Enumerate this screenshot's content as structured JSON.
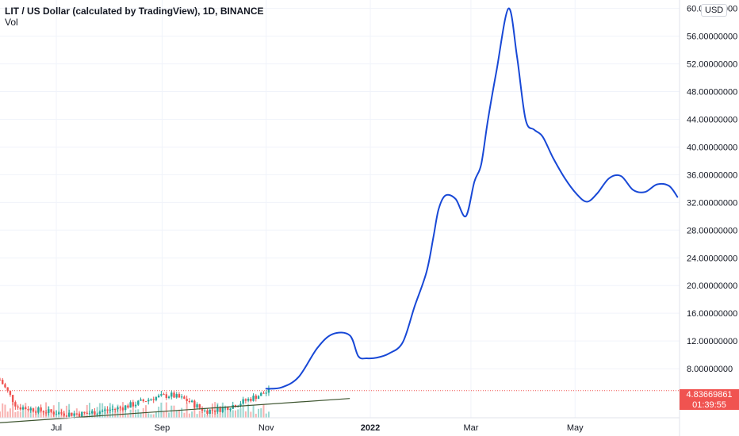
{
  "header": {
    "title": "LIT / US Dollar (calculated by TradingView), 1D, BINANCE",
    "sub": "Vol",
    "currency": "USD"
  },
  "price_badge": {
    "price": "4.83669861",
    "countdown": "01:39:55",
    "color": "#f05350"
  },
  "chart_data": {
    "type": "line",
    "title": "LIT / US Dollar (calculated by TradingView), 1D, BINANCE",
    "ylim": [
      0,
      60
    ],
    "y_ticks": [
      "60.00000000",
      "56.00000000",
      "52.00000000",
      "48.00000000",
      "44.00000000",
      "40.00000000",
      "36.00000000",
      "32.00000000",
      "28.00000000",
      "24.00000000",
      "20.00000000",
      "16.00000000",
      "12.00000000",
      "8.00000000"
    ],
    "y_tick_values": [
      60,
      56,
      52,
      48,
      44,
      40,
      36,
      32,
      28,
      24,
      20,
      16,
      12,
      8
    ],
    "x_ticks": [
      "Jul",
      "Sep",
      "Nov",
      "2022",
      "Mar",
      "May"
    ],
    "x_tick_dates": [
      "2021-07-01",
      "2021-09-01",
      "2021-11-01",
      "2022-01-01",
      "2022-03-01",
      "2022-05-01"
    ],
    "x_range": [
      "2021-05-29",
      "2022-06-30"
    ],
    "current_price": 4.83669861,
    "grid": true,
    "colors": {
      "candle_up": "#26a69a",
      "candle_down": "#ef5350",
      "projection": "#1848d6",
      "trendline": "#3e5530",
      "grid": "#f0f3fa"
    },
    "price_series": {
      "name": "",
      "x": [
        "2021-05-29",
        "2021-06-08",
        "2021-06-18",
        "2021-06-28",
        "2021-07-08",
        "2021-07-18",
        "2021-07-28",
        "2021-08-07",
        "2021-08-17",
        "2021-08-27",
        "2021-09-06",
        "2021-09-16",
        "2021-09-26",
        "2021-10-06",
        "2021-10-16",
        "2021-10-26",
        "2021-11-03"
      ],
      "close": [
        6.4,
        2.5,
        2.1,
        1.7,
        1.5,
        1.5,
        1.9,
        2.3,
        3.0,
        3.8,
        4.2,
        3.4,
        1.9,
        2.2,
        3.0,
        4.0,
        4.8
      ]
    },
    "projection": {
      "name": "",
      "x": [
        "2021-11-01",
        "2021-11-10",
        "2021-11-20",
        "2021-12-01",
        "2021-12-10",
        "2021-12-20",
        "2021-12-25",
        "2021-12-30",
        "2022-01-05",
        "2022-01-12",
        "2022-01-20",
        "2022-01-27",
        "2022-02-03",
        "2022-02-07",
        "2022-02-10",
        "2022-02-14",
        "2022-02-20",
        "2022-02-26",
        "2022-03-03",
        "2022-03-07",
        "2022-03-11",
        "2022-03-16",
        "2022-03-23",
        "2022-03-28",
        "2022-04-02",
        "2022-04-07",
        "2022-04-12",
        "2022-04-18",
        "2022-04-25",
        "2022-05-02",
        "2022-05-08",
        "2022-05-14",
        "2022-05-21",
        "2022-05-28",
        "2022-06-04",
        "2022-06-11",
        "2022-06-18",
        "2022-06-25",
        "2022-06-30"
      ],
      "y": [
        5.1,
        5.3,
        6.8,
        11.0,
        13.0,
        12.8,
        9.8,
        9.5,
        9.6,
        10.2,
        11.8,
        17.0,
        22.0,
        27.0,
        31.0,
        33.0,
        32.5,
        30.0,
        35.0,
        37.5,
        44.0,
        51.0,
        60.0,
        53.0,
        44.0,
        42.5,
        41.5,
        38.5,
        35.5,
        33.2,
        32.1,
        33.3,
        35.5,
        35.8,
        33.8,
        33.5,
        34.6,
        34.4,
        32.8
      ]
    },
    "trendline": {
      "x": [
        "2021-05-29",
        "2021-12-20"
      ],
      "y": [
        0.2,
        3.7
      ]
    }
  }
}
